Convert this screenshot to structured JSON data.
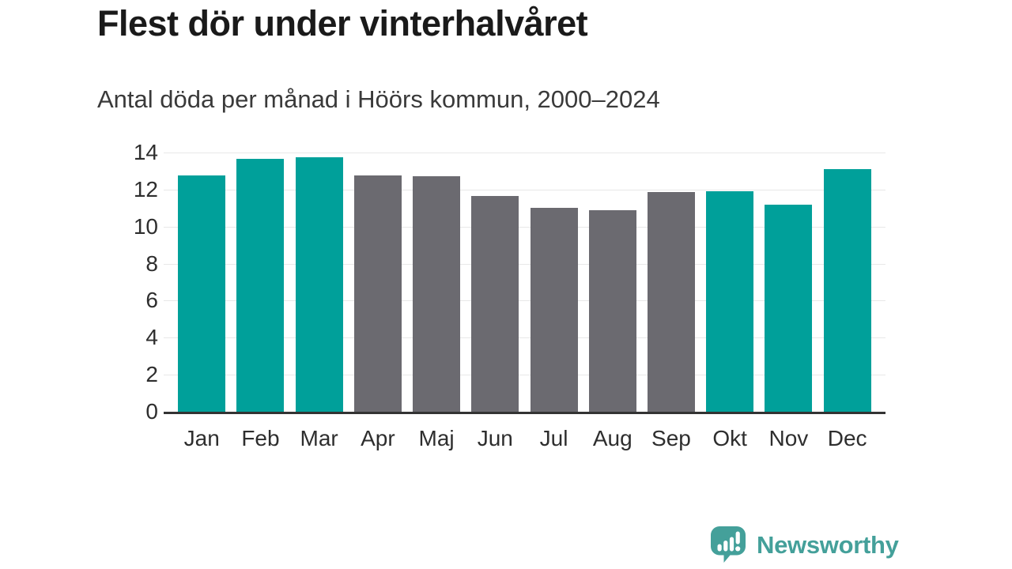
{
  "header": {
    "title": "Flest dör under vinterhalvåret",
    "subtitle": "Antal döda per månad i Höörs kommun, 2000–2024"
  },
  "chart_data": {
    "type": "bar",
    "title": "Flest dör under vinterhalvåret",
    "subtitle": "Antal döda per månad i Höörs kommun, 2000–2024",
    "categories": [
      "Jan",
      "Feb",
      "Mar",
      "Apr",
      "Maj",
      "Jun",
      "Jul",
      "Aug",
      "Sep",
      "Okt",
      "Nov",
      "Dec"
    ],
    "values": [
      12.75,
      13.65,
      13.75,
      12.75,
      12.7,
      11.65,
      11.0,
      10.9,
      11.85,
      11.9,
      11.2,
      13.1
    ],
    "groups": [
      "winter",
      "winter",
      "winter",
      "summer",
      "summer",
      "summer",
      "summer",
      "summer",
      "summer",
      "winter",
      "winter",
      "winter"
    ],
    "group_colors": {
      "winter": "#00a09a",
      "summer": "#6b6a70"
    },
    "xlabel": "",
    "ylabel": "",
    "ylim": [
      0,
      14
    ],
    "yticks": [
      0,
      2,
      4,
      6,
      8,
      10,
      12,
      14
    ],
    "grid": true,
    "legend": false,
    "grid_color": "#e8e8e8",
    "axis_line_color": "#333333",
    "tick_label_color": "#2e2e2e"
  },
  "footer": {
    "brand": "Newsworthy",
    "brand_color": "#44a09a",
    "brand_icon": "speech-bubble-bar-chart-exclamation"
  }
}
